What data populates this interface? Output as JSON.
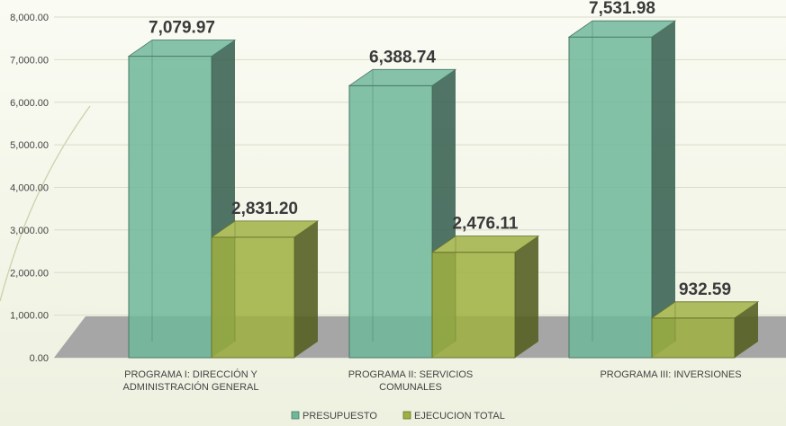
{
  "chart_data": {
    "type": "bar",
    "style": "3d-clustered-column",
    "categories": [
      [
        "PROGRAMA I:   DIRECCIÓN Y",
        "ADMINISTRACIÓN GENERAL"
      ],
      [
        "PROGRAMA II:   SERVICIOS",
        "COMUNALES"
      ],
      [
        "PROGRAMA III:   INVERSIONES"
      ]
    ],
    "series": [
      {
        "name": "PRESUPUESTO",
        "values": [
          7079.97,
          6388.74,
          7531.98
        ],
        "labels": [
          "7,079.97",
          "6,388.74",
          "7,531.98"
        ],
        "color": "#6fb79a"
      },
      {
        "name": "EJECUCION TOTAL",
        "values": [
          2831.2,
          2476.11,
          932.59
        ],
        "labels": [
          "2,831.20",
          "2,476.11",
          "932.59"
        ],
        "color": "#9fb041"
      }
    ],
    "yticks": [
      "0.00",
      "1,000.00",
      "2,000.00",
      "3,000.00",
      "4,000.00",
      "5,000.00",
      "6,000.00",
      "7,000.00",
      "8,000.00"
    ],
    "ylim": [
      0,
      8000
    ],
    "legend_position": "bottom",
    "gridlines": true,
    "floor_color": "#a6a6a6"
  }
}
